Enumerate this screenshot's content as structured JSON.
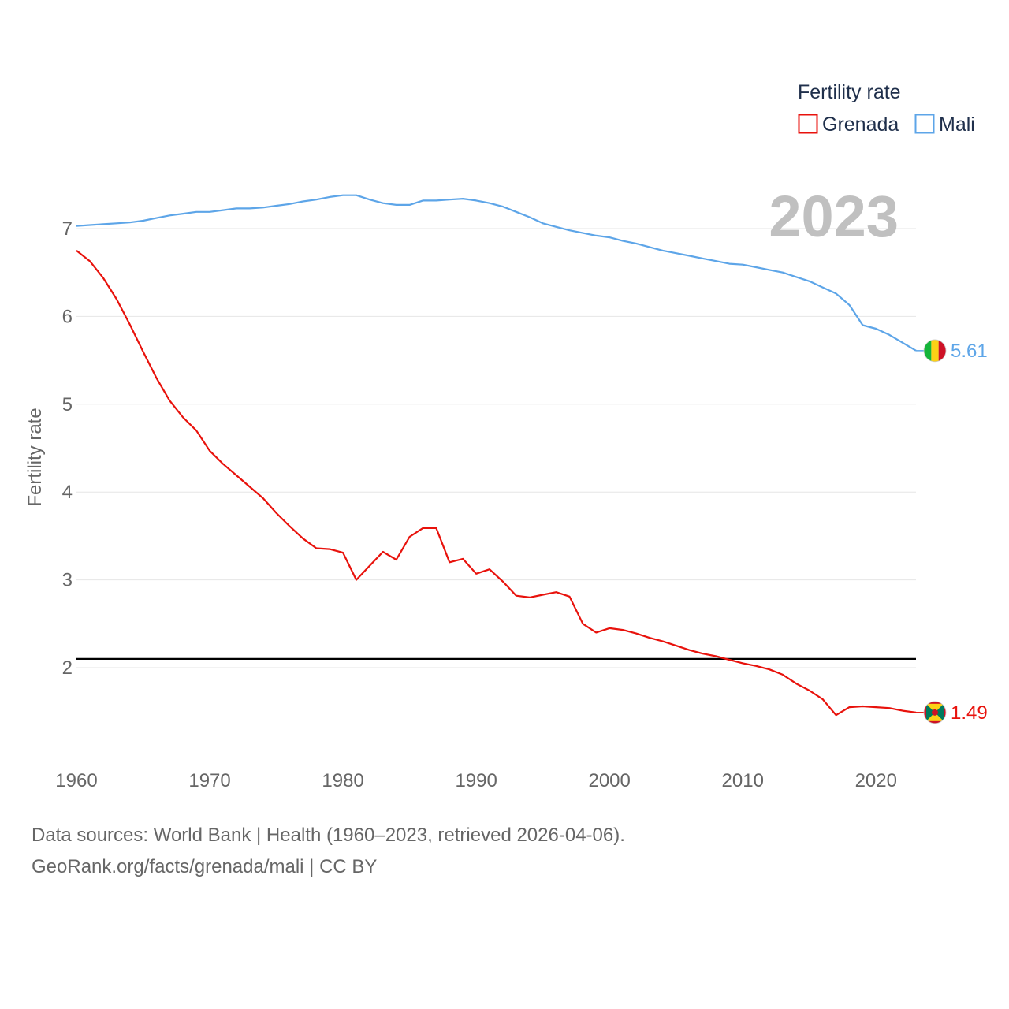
{
  "chart_data": {
    "type": "line",
    "title": "",
    "xlabel": "",
    "ylabel": "Fertility rate",
    "xlim": [
      1960,
      2023
    ],
    "ylim": [
      1.0,
      7.6
    ],
    "yticks": [
      2,
      3,
      4,
      5,
      6,
      7
    ],
    "xticks": [
      1960,
      1970,
      1980,
      1990,
      2000,
      2010,
      2020
    ],
    "reference_line": 2.1,
    "year_label": "2023",
    "legend": {
      "title": "Fertility rate",
      "position": "top-right"
    },
    "x": [
      1960,
      1961,
      1962,
      1963,
      1964,
      1965,
      1966,
      1967,
      1968,
      1969,
      1970,
      1971,
      1972,
      1973,
      1974,
      1975,
      1976,
      1977,
      1978,
      1979,
      1980,
      1981,
      1982,
      1983,
      1984,
      1985,
      1986,
      1987,
      1988,
      1989,
      1990,
      1991,
      1992,
      1993,
      1994,
      1995,
      1996,
      1997,
      1998,
      1999,
      2000,
      2001,
      2002,
      2003,
      2004,
      2005,
      2006,
      2007,
      2008,
      2009,
      2010,
      2011,
      2012,
      2013,
      2014,
      2015,
      2016,
      2017,
      2018,
      2019,
      2020,
      2021,
      2022,
      2023
    ],
    "series": [
      {
        "name": "Grenada",
        "color": "#e8120c",
        "end_value_label": "1.49",
        "flag": "grenada-flag",
        "values": [
          6.75,
          6.63,
          6.44,
          6.2,
          5.91,
          5.6,
          5.3,
          5.04,
          4.85,
          4.7,
          4.47,
          4.32,
          4.19,
          4.06,
          3.93,
          3.76,
          3.61,
          3.47,
          3.36,
          3.35,
          3.31,
          3.0,
          3.16,
          3.32,
          3.23,
          3.49,
          3.59,
          3.59,
          3.2,
          3.24,
          3.07,
          3.12,
          2.98,
          2.82,
          2.8,
          2.83,
          2.86,
          2.81,
          2.5,
          2.4,
          2.45,
          2.43,
          2.39,
          2.34,
          2.3,
          2.25,
          2.2,
          2.16,
          2.13,
          2.09,
          2.05,
          2.02,
          1.98,
          1.92,
          1.82,
          1.74,
          1.64,
          1.46,
          1.55,
          1.56,
          1.55,
          1.54,
          1.51,
          1.49
        ]
      },
      {
        "name": "Mali",
        "color": "#5da5e8",
        "end_value_label": "5.61",
        "flag": "mali-flag",
        "values": [
          7.03,
          7.04,
          7.05,
          7.06,
          7.07,
          7.09,
          7.12,
          7.15,
          7.17,
          7.19,
          7.19,
          7.21,
          7.23,
          7.23,
          7.24,
          7.26,
          7.28,
          7.31,
          7.33,
          7.36,
          7.38,
          7.38,
          7.33,
          7.29,
          7.27,
          7.27,
          7.32,
          7.32,
          7.33,
          7.34,
          7.32,
          7.29,
          7.25,
          7.19,
          7.13,
          7.06,
          7.02,
          6.98,
          6.95,
          6.92,
          6.9,
          6.86,
          6.83,
          6.79,
          6.75,
          6.72,
          6.69,
          6.66,
          6.63,
          6.6,
          6.59,
          6.56,
          6.53,
          6.5,
          6.45,
          6.4,
          6.33,
          6.26,
          6.13,
          5.9,
          5.86,
          5.79,
          5.7,
          5.61
        ]
      }
    ]
  },
  "source": {
    "line1": "Data sources: World Bank | Health (1960–2023, retrieved 2026-04-06).",
    "line2": "GeoRank.org/facts/grenada/mali | CC BY"
  }
}
